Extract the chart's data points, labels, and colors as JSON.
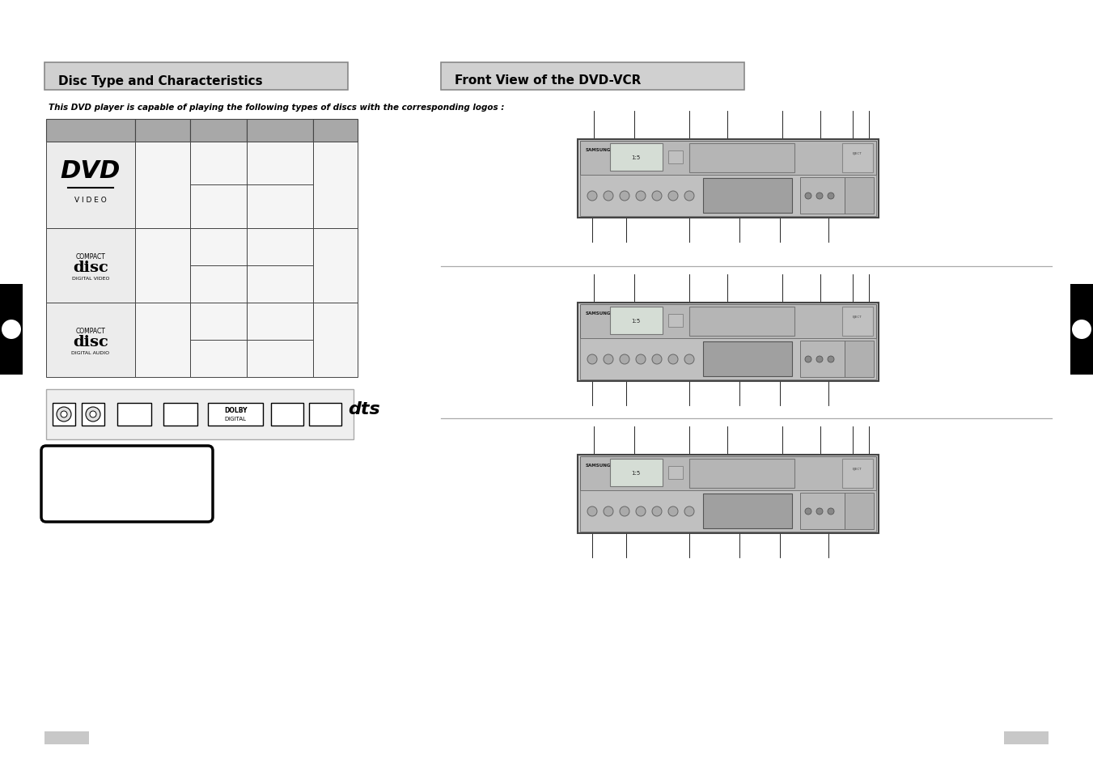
{
  "bg_color": "#ffffff",
  "left_title": "Disc Type and Characteristics",
  "right_title": "Front View of the DVD-VCR",
  "subtitle": "This DVD player is capable of playing the following types of discs with the corresponding logos :",
  "title_bg": "#d0d0d0",
  "title_border": "#888888",
  "table_header_bg": "#a8a8a8",
  "table_row0_bg": "#ececec",
  "table_row1_bg": "#f5f5f5",
  "table_border": "#444444",
  "black_tab": "#000000",
  "white_circle": "#ffffff",
  "device_body": "#cccccc",
  "device_top_strip": "#b8b8b8",
  "device_display": "#d8ddd8",
  "device_slot": "#b0b0b0",
  "device_border": "#555555",
  "separator_color": "#aaaaaa",
  "footer_rect": "#c8c8c8",
  "logo_bar_bg": "#efefef",
  "logo_bar_border": "#aaaaaa",
  "dts_color": "#000000"
}
